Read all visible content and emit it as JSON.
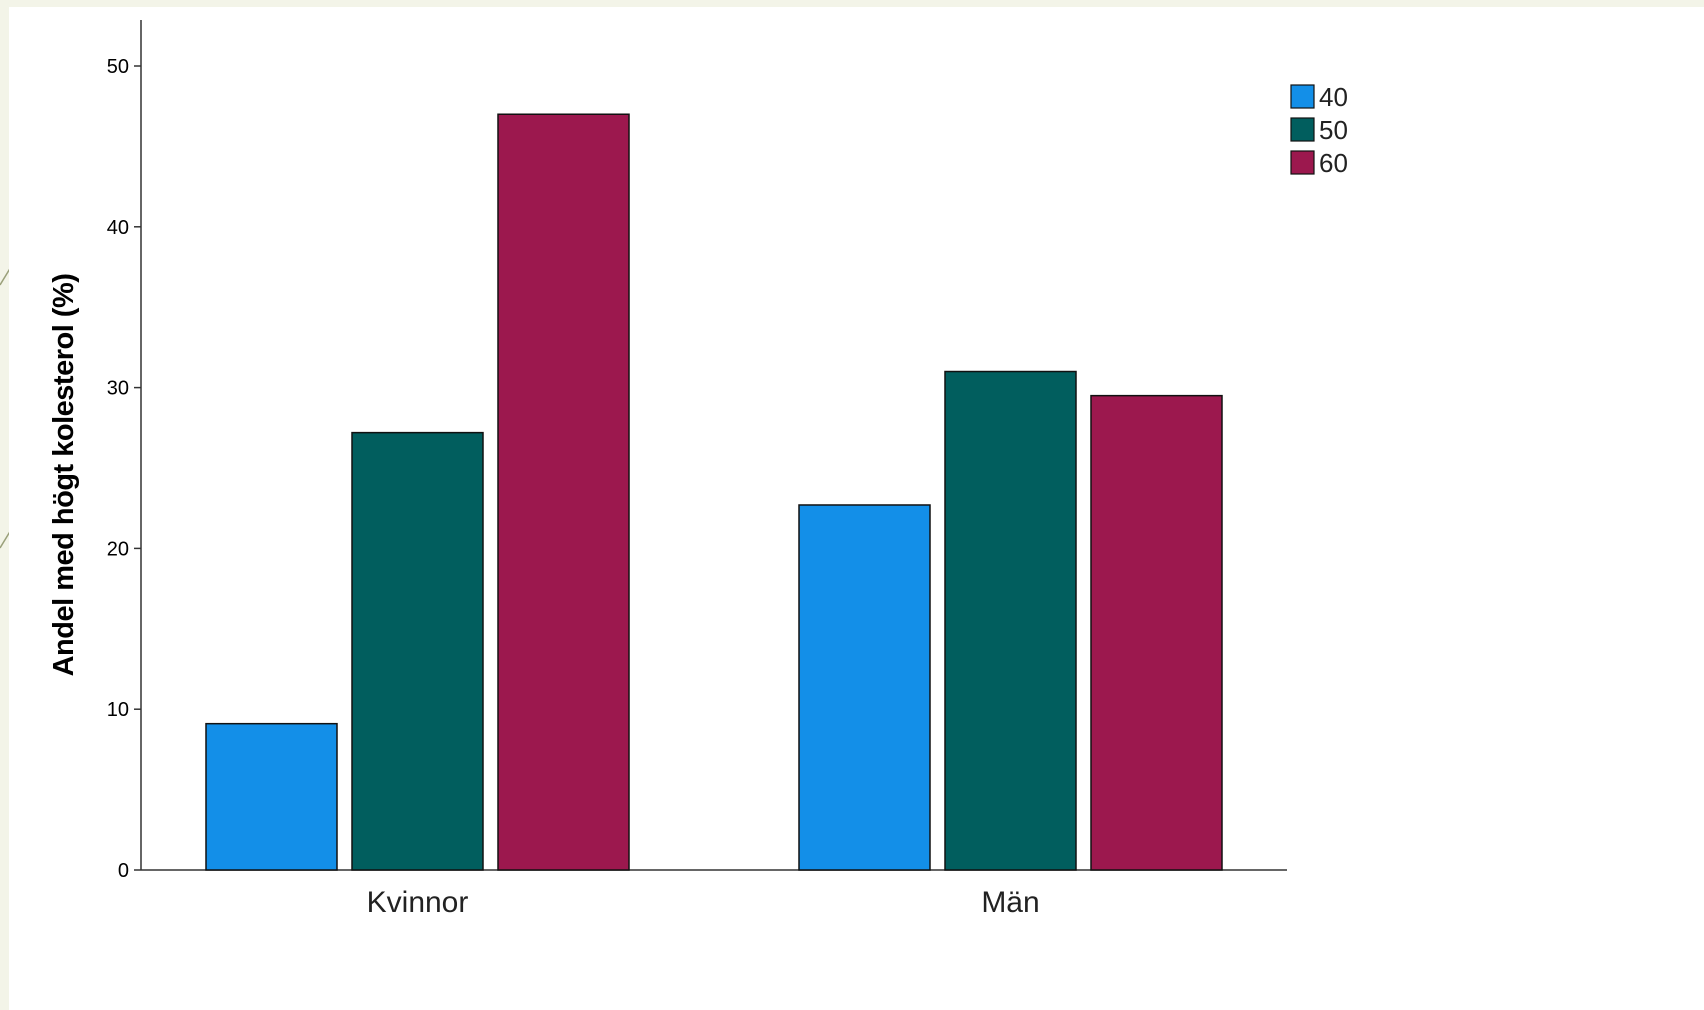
{
  "chart_data": {
    "type": "bar",
    "title": "",
    "xlabel": "",
    "ylabel": "Andel med högt kolesterol (%)",
    "categories": [
      "Kvinnor",
      "Män"
    ],
    "series": [
      {
        "name": "40",
        "color": "#138fe8",
        "values": [
          9.1,
          22.7
        ]
      },
      {
        "name": "50",
        "color": "#015e5e",
        "values": [
          27.2,
          31.0
        ]
      },
      {
        "name": "60",
        "color": "#9c184e",
        "values": [
          47.0,
          29.5
        ]
      }
    ],
    "ylim": [
      0,
      50
    ],
    "yticks": [
      "0",
      "10",
      "20",
      "30",
      "40",
      "50"
    ],
    "grid": false,
    "legend": "top-right"
  }
}
